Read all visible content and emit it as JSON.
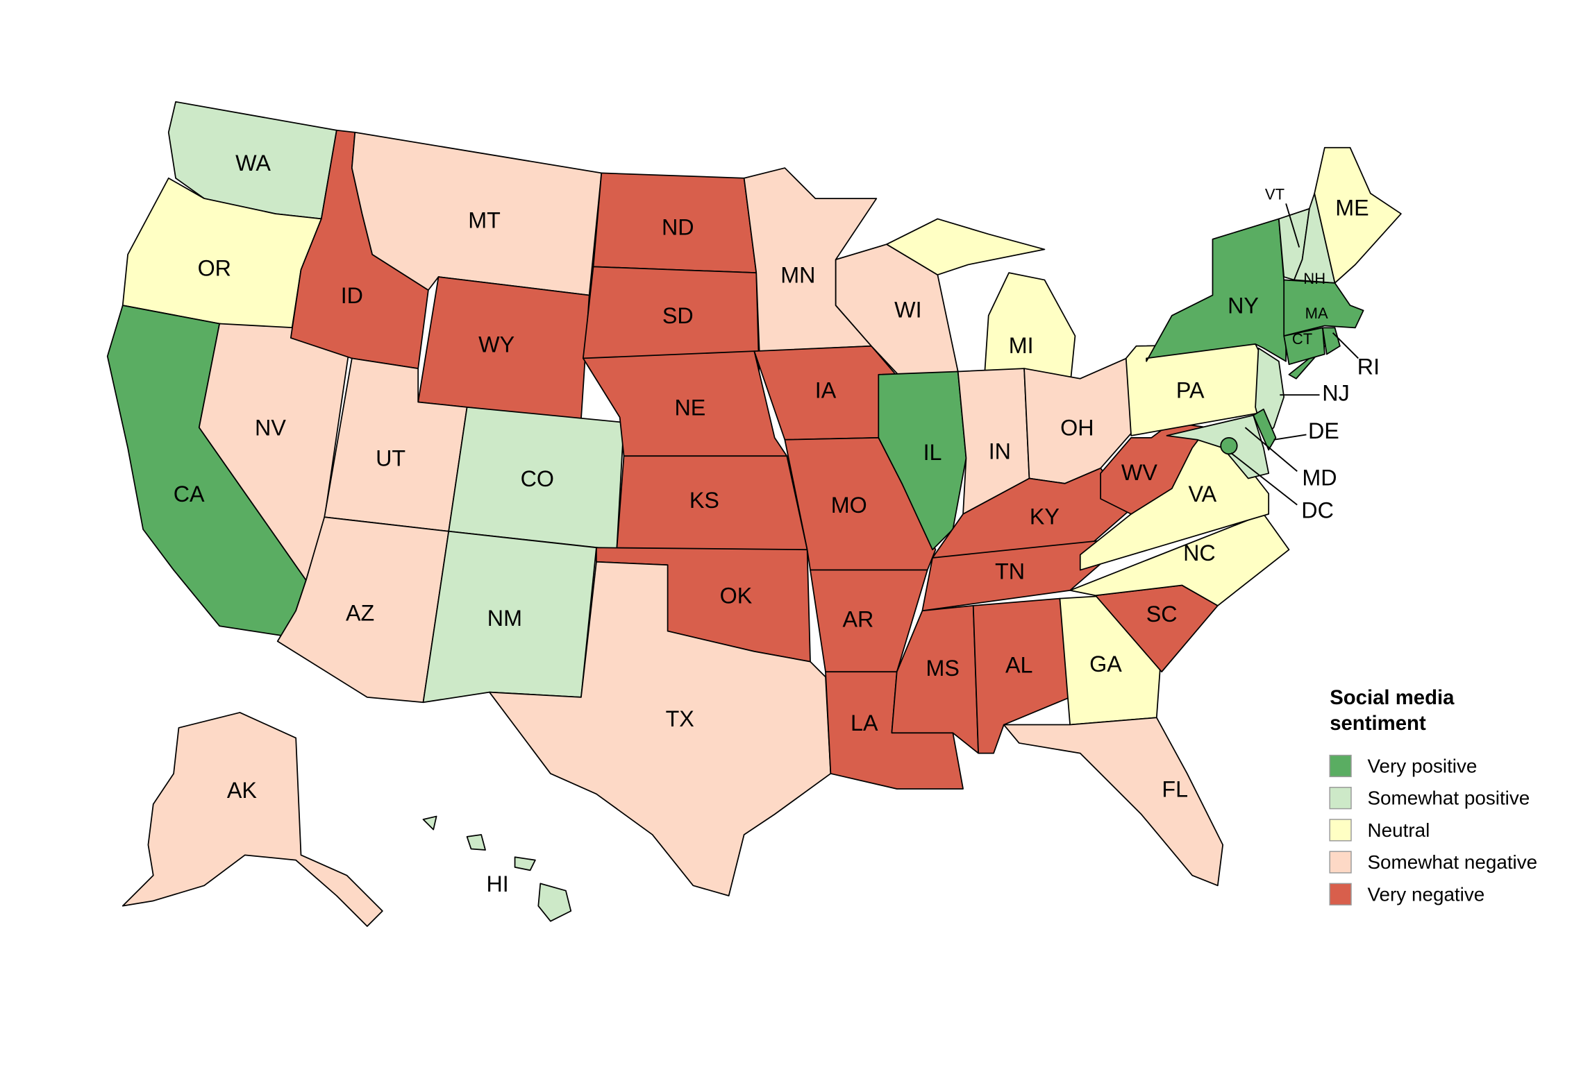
{
  "legend": {
    "title_line1": "Social media",
    "title_line2": "sentiment",
    "items": [
      {
        "key": "vp",
        "label": "Very positive",
        "color": "#5aad62"
      },
      {
        "key": "sp",
        "label": "Somewhat positive",
        "color": "#cde9c8"
      },
      {
        "key": "ne",
        "label": "Neutral",
        "color": "#ffffc4"
      },
      {
        "key": "sn",
        "label": "Somewhat negative",
        "color": "#fdd9c6"
      },
      {
        "key": "vn",
        "label": "Very negative",
        "color": "#d85f4c"
      }
    ]
  },
  "states": {
    "WA": "sp",
    "OR": "ne",
    "CA": "vp",
    "NV": "sn",
    "ID": "vn",
    "MT": "sn",
    "WY": "vn",
    "UT": "sn",
    "CO": "sp",
    "AZ": "sn",
    "NM": "sp",
    "ND": "vn",
    "SD": "vn",
    "NE": "vn",
    "KS": "vn",
    "OK": "vn",
    "TX": "sn",
    "MN": "sn",
    "IA": "vn",
    "MO": "vn",
    "AR": "vn",
    "LA": "vn",
    "WI": "sn",
    "IL": "vp",
    "MI": "ne",
    "IN": "sn",
    "OH": "sn",
    "KY": "vn",
    "TN": "vn",
    "MS": "vn",
    "AL": "vn",
    "GA": "ne",
    "FL": "sn",
    "SC": "vn",
    "NC": "ne",
    "VA": "ne",
    "WV": "vn",
    "PA": "ne",
    "NY": "vp",
    "NJ": "sp",
    "MD": "sp",
    "DE": "vp",
    "DC": "vp",
    "VT": "sp",
    "NH": "sp",
    "ME": "ne",
    "MA": "vp",
    "CT": "vp",
    "RI": "vp",
    "AK": "sn",
    "HI": "sp"
  }
}
